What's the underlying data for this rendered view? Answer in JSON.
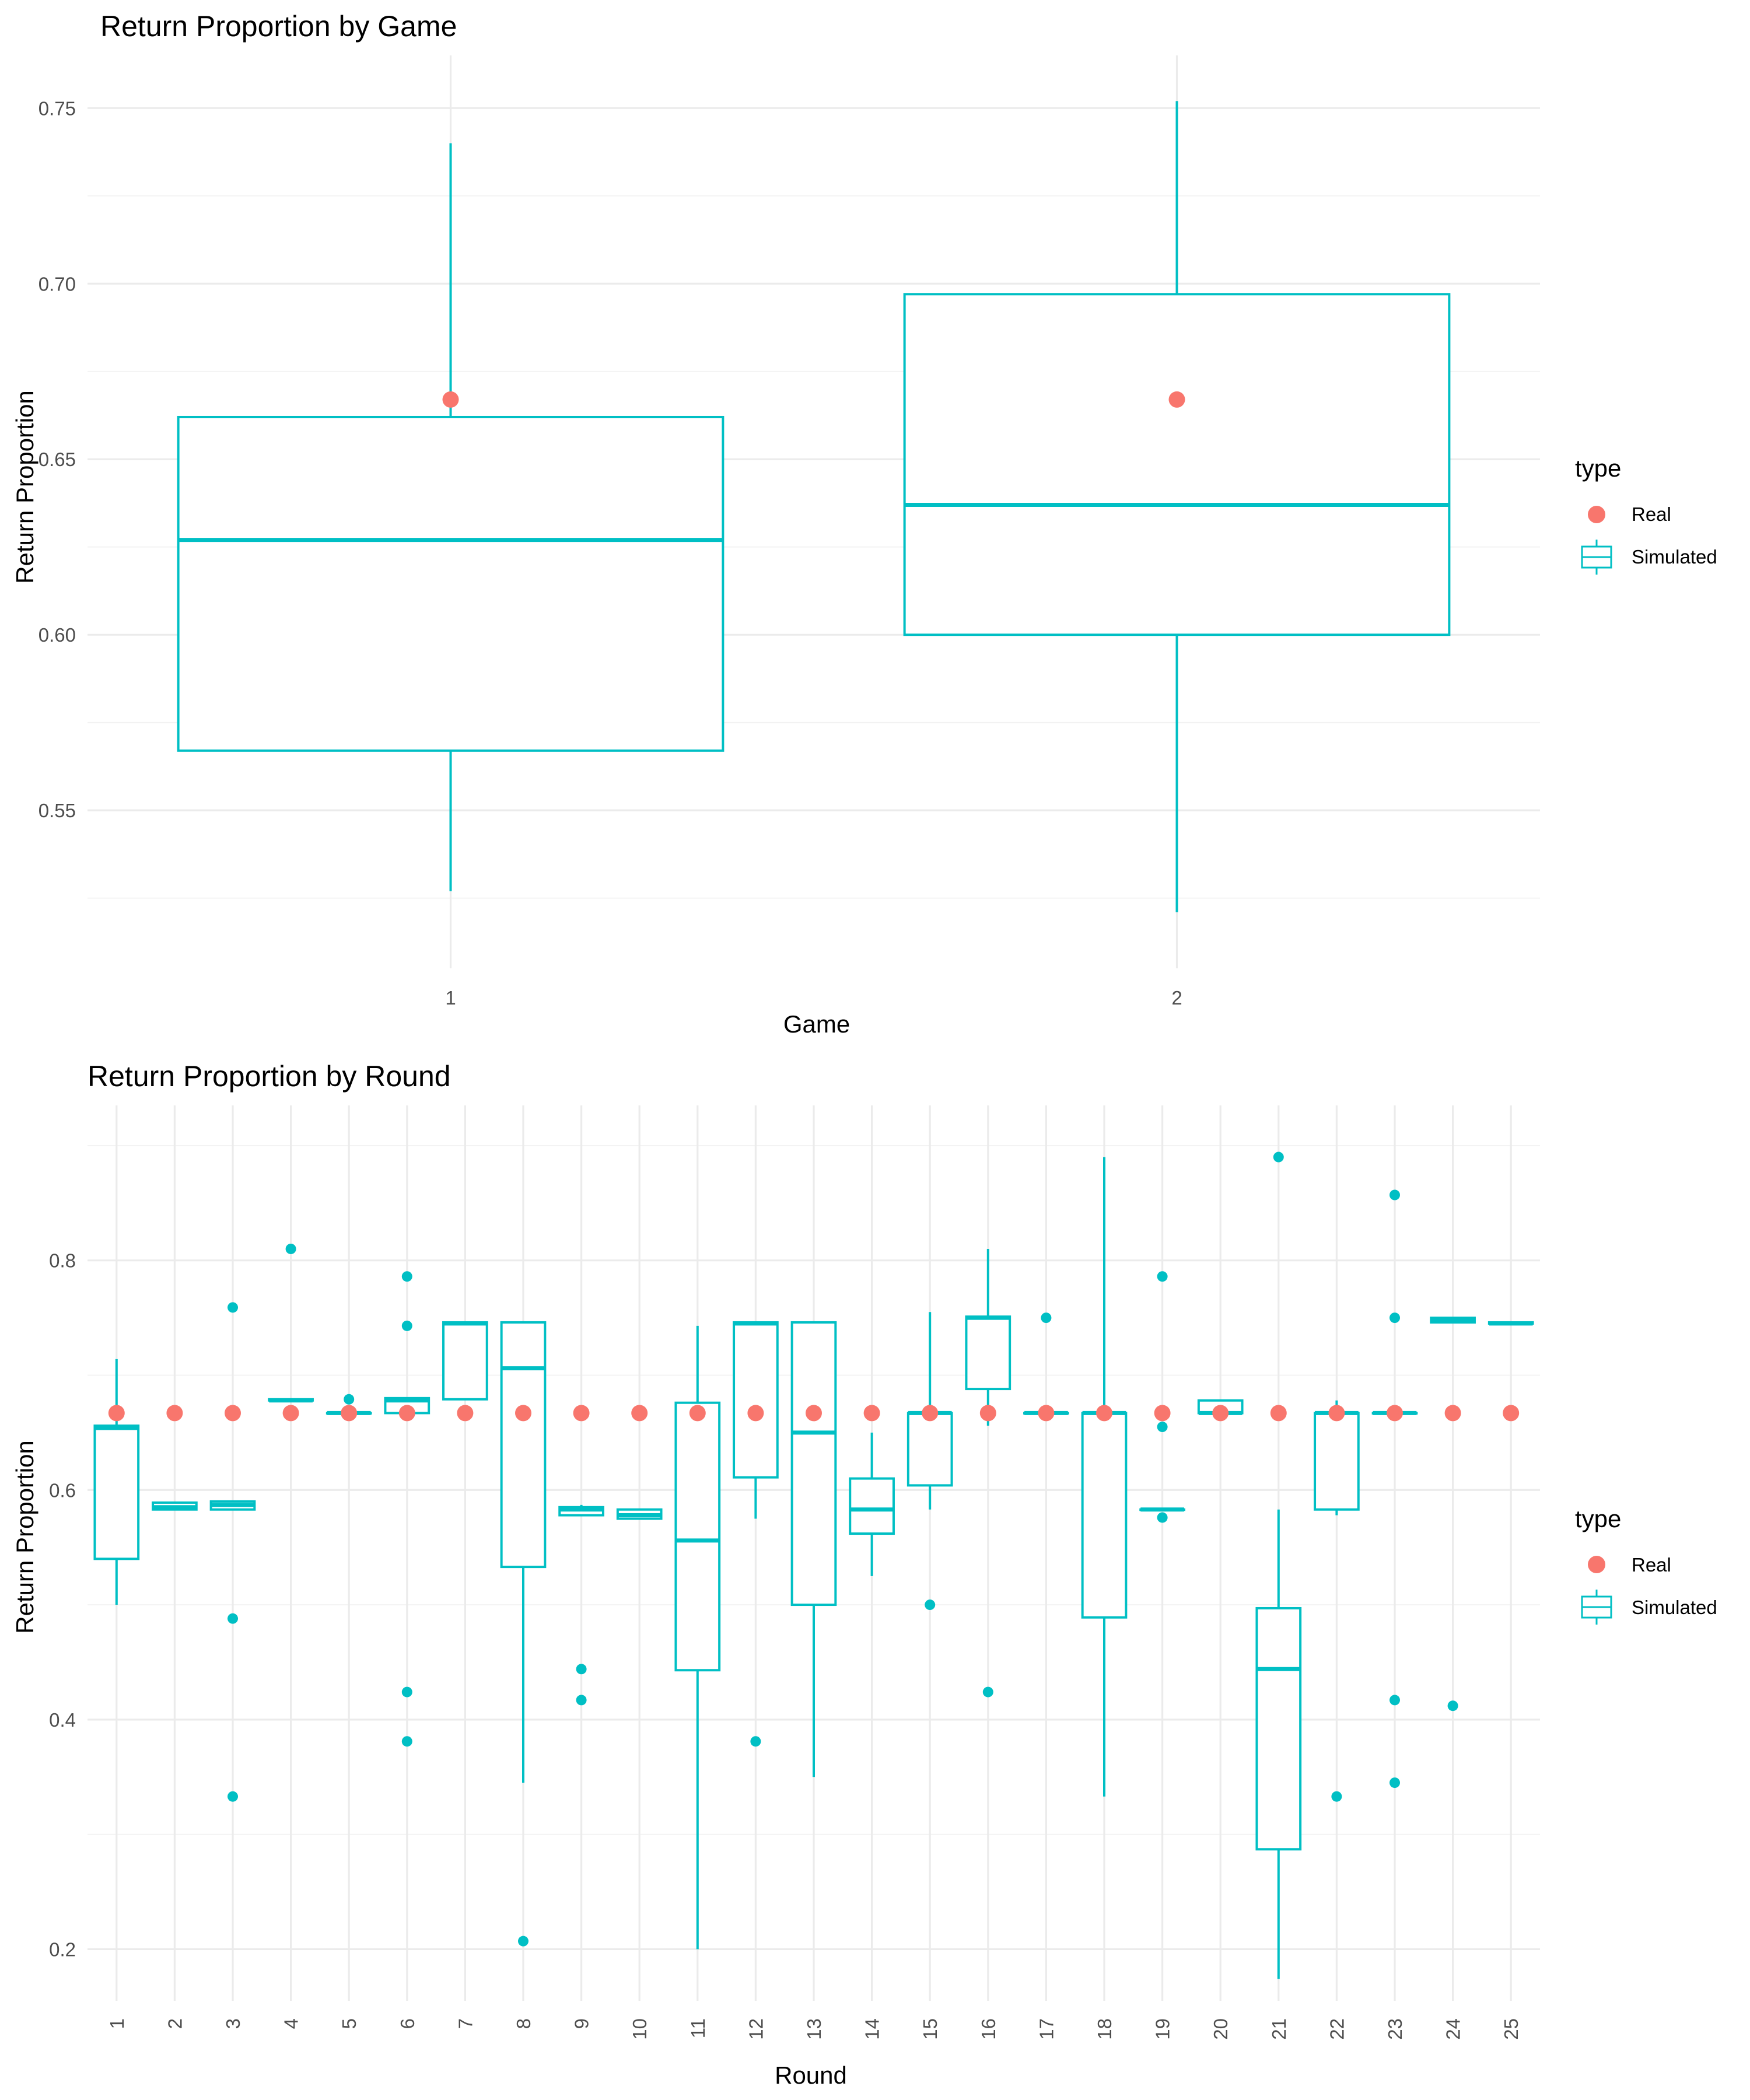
{
  "chart_data": [
    {
      "type": "box",
      "title": "Return Proportion by Game",
      "xlabel": "Game",
      "ylabel": "Return Proportion",
      "categories": [
        "1",
        "2"
      ],
      "ylim": [
        0.505,
        0.765
      ],
      "y_ticks": [
        0.55,
        0.6,
        0.65,
        0.7,
        0.75
      ],
      "y_tick_labels": [
        "0.55",
        "0.60",
        "0.65",
        "0.70",
        "0.75"
      ],
      "grid": true,
      "legend": {
        "title": "type",
        "position": "right",
        "entries": [
          {
            "label": "Real",
            "kind": "point",
            "color": "#F8766D"
          },
          {
            "label": "Simulated",
            "kind": "box",
            "color": "#00BFC4"
          }
        ]
      },
      "series": [
        {
          "name": "Simulated",
          "color": "#00BFC4",
          "boxes": [
            {
              "category": "1",
              "min": 0.527,
              "q1": 0.567,
              "median": 0.627,
              "q3": 0.662,
              "max": 0.74,
              "outliers": []
            },
            {
              "category": "2",
              "min": 0.521,
              "q1": 0.6,
              "median": 0.637,
              "q3": 0.697,
              "max": 0.752,
              "outliers": []
            }
          ]
        },
        {
          "name": "Real",
          "color": "#F8766D",
          "points": [
            {
              "category": "1",
              "value": 0.667
            },
            {
              "category": "2",
              "value": 0.667
            }
          ]
        }
      ]
    },
    {
      "type": "box",
      "title": "Return Proportion by Round",
      "xlabel": "Round",
      "ylabel": "Return Proportion",
      "categories": [
        "1",
        "2",
        "3",
        "4",
        "5",
        "6",
        "7",
        "8",
        "9",
        "10",
        "11",
        "12",
        "13",
        "14",
        "15",
        "16",
        "17",
        "18",
        "19",
        "20",
        "21",
        "22",
        "23",
        "24",
        "25"
      ],
      "ylim": [
        0.155,
        0.935
      ],
      "y_ticks": [
        0.2,
        0.4,
        0.6,
        0.8
      ],
      "y_tick_labels": [
        "0.2",
        "0.4",
        "0.6",
        "0.8"
      ],
      "grid": true,
      "legend": {
        "title": "type",
        "position": "right",
        "entries": [
          {
            "label": "Real",
            "kind": "point",
            "color": "#F8766D"
          },
          {
            "label": "Simulated",
            "kind": "box",
            "color": "#00BFC4"
          }
        ]
      },
      "series": [
        {
          "name": "Simulated",
          "color": "#00BFC4",
          "boxes": [
            {
              "category": "1",
              "min": 0.5,
              "q1": 0.54,
              "median": 0.654,
              "q3": 0.656,
              "max": 0.714,
              "outliers": []
            },
            {
              "category": "2",
              "min": 0.583,
              "q1": 0.583,
              "median": 0.585,
              "q3": 0.589,
              "max": 0.589,
              "outliers": []
            },
            {
              "category": "3",
              "min": 0.583,
              "q1": 0.583,
              "median": 0.587,
              "q3": 0.59,
              "max": 0.59,
              "outliers": [
                0.759,
                0.488,
                0.333
              ]
            },
            {
              "category": "4",
              "min": 0.678,
              "q1": 0.678,
              "median": 0.678,
              "q3": 0.679,
              "max": 0.679,
              "outliers": [
                0.81
              ]
            },
            {
              "category": "5",
              "min": 0.667,
              "q1": 0.667,
              "median": 0.667,
              "q3": 0.667,
              "max": 0.667,
              "outliers": [
                0.679
              ]
            },
            {
              "category": "6",
              "min": 0.667,
              "q1": 0.667,
              "median": 0.678,
              "q3": 0.68,
              "max": 0.68,
              "outliers": [
                0.786,
                0.743,
                0.424,
                0.381
              ]
            },
            {
              "category": "7",
              "min": 0.679,
              "q1": 0.679,
              "median": 0.745,
              "q3": 0.746,
              "max": 0.746,
              "outliers": []
            },
            {
              "category": "8",
              "min": 0.345,
              "q1": 0.533,
              "median": 0.706,
              "q3": 0.746,
              "max": 0.746,
              "outliers": [
                0.207
              ]
            },
            {
              "category": "9",
              "min": 0.578,
              "q1": 0.578,
              "median": 0.583,
              "q3": 0.585,
              "max": 0.587,
              "outliers": [
                0.444,
                0.417
              ]
            },
            {
              "category": "10",
              "min": 0.575,
              "q1": 0.575,
              "median": 0.578,
              "q3": 0.583,
              "max": 0.583,
              "outliers": []
            },
            {
              "category": "11",
              "min": 0.2,
              "q1": 0.443,
              "median": 0.556,
              "q3": 0.676,
              "max": 0.743,
              "outliers": []
            },
            {
              "category": "12",
              "min": 0.575,
              "q1": 0.611,
              "median": 0.745,
              "q3": 0.746,
              "max": 0.746,
              "outliers": [
                0.381
              ]
            },
            {
              "category": "13",
              "min": 0.35,
              "q1": 0.5,
              "median": 0.65,
              "q3": 0.746,
              "max": 0.746,
              "outliers": []
            },
            {
              "category": "14",
              "min": 0.525,
              "q1": 0.562,
              "median": 0.583,
              "q3": 0.61,
              "max": 0.65,
              "outliers": []
            },
            {
              "category": "15",
              "min": 0.583,
              "q1": 0.604,
              "median": 0.667,
              "q3": 0.667,
              "max": 0.755,
              "outliers": [
                0.5
              ]
            },
            {
              "category": "16",
              "min": 0.656,
              "q1": 0.688,
              "median": 0.75,
              "q3": 0.751,
              "max": 0.81,
              "outliers": [
                0.424
              ]
            },
            {
              "category": "17",
              "min": 0.667,
              "q1": 0.667,
              "median": 0.667,
              "q3": 0.667,
              "max": 0.667,
              "outliers": [
                0.75
              ]
            },
            {
              "category": "18",
              "min": 0.333,
              "q1": 0.489,
              "median": 0.667,
              "q3": 0.667,
              "max": 0.89,
              "outliers": []
            },
            {
              "category": "19",
              "min": 0.583,
              "q1": 0.583,
              "median": 0.583,
              "q3": 0.583,
              "max": 0.583,
              "outliers": [
                0.786,
                0.655,
                0.576
              ]
            },
            {
              "category": "20",
              "min": 0.667,
              "q1": 0.667,
              "median": 0.667,
              "q3": 0.678,
              "max": 0.678,
              "outliers": []
            },
            {
              "category": "21",
              "min": 0.174,
              "q1": 0.287,
              "median": 0.444,
              "q3": 0.497,
              "max": 0.583,
              "outliers": [
                0.89
              ]
            },
            {
              "category": "22",
              "min": 0.578,
              "q1": 0.583,
              "median": 0.667,
              "q3": 0.667,
              "max": 0.678,
              "outliers": [
                0.333
              ]
            },
            {
              "category": "23",
              "min": 0.667,
              "q1": 0.667,
              "median": 0.667,
              "q3": 0.667,
              "max": 0.667,
              "outliers": [
                0.857,
                0.75,
                0.417,
                0.345
              ]
            },
            {
              "category": "24",
              "min": 0.746,
              "q1": 0.746,
              "median": 0.748,
              "q3": 0.75,
              "max": 0.75,
              "outliers": [
                0.412
              ]
            },
            {
              "category": "25",
              "min": 0.745,
              "q1": 0.745,
              "median": 0.745,
              "q3": 0.746,
              "max": 0.746,
              "outliers": []
            }
          ]
        },
        {
          "name": "Real",
          "color": "#F8766D",
          "points": [
            {
              "category": "1",
              "value": 0.667
            },
            {
              "category": "2",
              "value": 0.667
            },
            {
              "category": "3",
              "value": 0.667
            },
            {
              "category": "4",
              "value": 0.667
            },
            {
              "category": "5",
              "value": 0.667
            },
            {
              "category": "6",
              "value": 0.667
            },
            {
              "category": "7",
              "value": 0.667
            },
            {
              "category": "8",
              "value": 0.667
            },
            {
              "category": "9",
              "value": 0.667
            },
            {
              "category": "10",
              "value": 0.667
            },
            {
              "category": "11",
              "value": 0.667
            },
            {
              "category": "12",
              "value": 0.667
            },
            {
              "category": "13",
              "value": 0.667
            },
            {
              "category": "14",
              "value": 0.667
            },
            {
              "category": "15",
              "value": 0.667
            },
            {
              "category": "16",
              "value": 0.667
            },
            {
              "category": "17",
              "value": 0.667
            },
            {
              "category": "18",
              "value": 0.667
            },
            {
              "category": "19",
              "value": 0.667
            },
            {
              "category": "20",
              "value": 0.667
            },
            {
              "category": "21",
              "value": 0.667
            },
            {
              "category": "22",
              "value": 0.667
            },
            {
              "category": "23",
              "value": 0.667
            },
            {
              "category": "24",
              "value": 0.667
            },
            {
              "category": "25",
              "value": 0.667
            }
          ]
        }
      ]
    }
  ]
}
